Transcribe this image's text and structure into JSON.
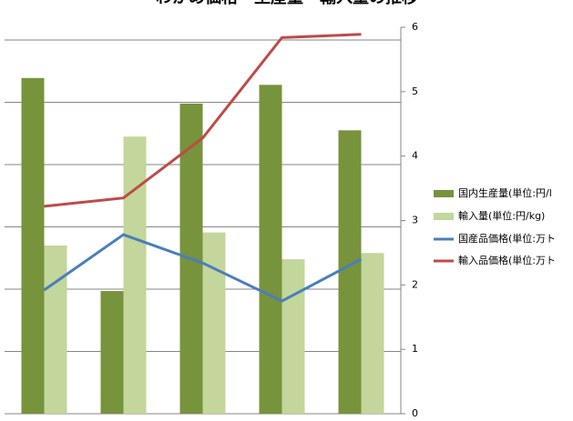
{
  "chart_data": {
    "type": "bar_line",
    "title": "わかめ価格・生産量・輸入量の推移",
    "categories": [
      null,
      null,
      null,
      null,
      null
    ],
    "series": [
      {
        "name": "国内生産量(単位:円/l",
        "type": "bar",
        "color": "#77933c",
        "values": [
          5.39,
          1.97,
          4.98,
          5.28,
          4.55
        ]
      },
      {
        "name": "輸入量(単位:円/kg)",
        "type": "bar",
        "color": "#c3d69b",
        "values": [
          2.7,
          4.45,
          2.91,
          2.48,
          2.58
        ]
      },
      {
        "name": "国産品価格(単位:万ト",
        "type": "line",
        "axis": "y2",
        "color": "#4a7ebb",
        "values": [
          1.92,
          2.78,
          2.34,
          1.75,
          2.4
        ]
      },
      {
        "name": "輸入品価格(単位:万ト",
        "type": "line",
        "axis": "y2",
        "color": "#be4b48",
        "values": [
          3.22,
          3.35,
          4.28,
          5.84,
          5.89
        ]
      }
    ],
    "ylim": [
      0,
      6
    ],
    "yticks": [
      0,
      1,
      2,
      3,
      4,
      5,
      6
    ],
    "y2lim": [
      0,
      6
    ],
    "y2ticks": [
      0,
      1,
      2,
      3,
      4,
      5,
      6
    ],
    "grid": true,
    "legend": "right"
  }
}
